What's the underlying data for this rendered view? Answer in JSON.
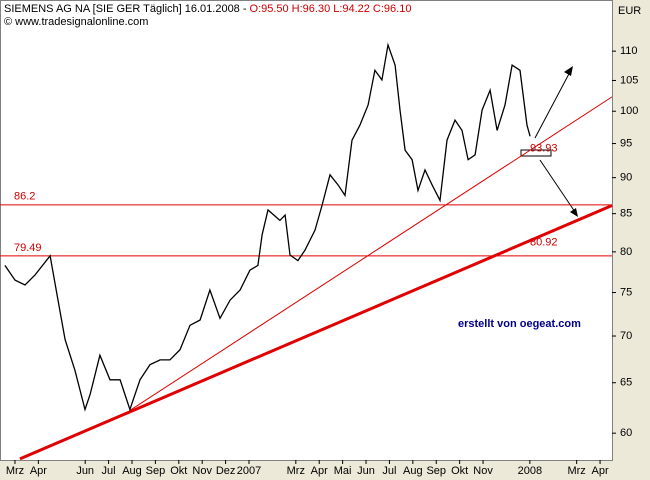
{
  "chart_data": {
    "type": "line",
    "title": "SIEMENS AG NA [SIE GER  Täglich] 16.01.2008 -",
    "ohlc_labels": [
      "O:95.50",
      "H:96.30",
      "L:94.22",
      "C:96.10"
    ],
    "subtitle": "© www.tradesignalonline.com",
    "y_axis_label": "EUR",
    "annotation": "erstellt von oegeat.com",
    "log_scale": true,
    "xlim": [
      -0.64,
      25.51
    ],
    "ylim": [
      57.5,
      119.3
    ],
    "yticks": [
      60,
      65,
      70,
      75,
      80,
      85,
      90,
      95,
      100,
      105,
      110
    ],
    "xticks": [
      {
        "value": 0,
        "label": "Mrz"
      },
      {
        "value": 1,
        "label": "Apr"
      },
      {
        "value": 3,
        "label": "Jun"
      },
      {
        "value": 4,
        "label": "Jul"
      },
      {
        "value": 5,
        "label": "Aug"
      },
      {
        "value": 6,
        "label": "Sep"
      },
      {
        "value": 7,
        "label": "Okt"
      },
      {
        "value": 8,
        "label": "Nov"
      },
      {
        "value": 9,
        "label": "Dez"
      },
      {
        "value": 10,
        "label": "2007"
      },
      {
        "value": 12,
        "label": "Mrz"
      },
      {
        "value": 13,
        "label": "Apr"
      },
      {
        "value": 14,
        "label": "Mai"
      },
      {
        "value": 15,
        "label": "Jun"
      },
      {
        "value": 16,
        "label": "Jul"
      },
      {
        "value": 17,
        "label": "Aug"
      },
      {
        "value": 18,
        "label": "Sep"
      },
      {
        "value": 19,
        "label": "Okt"
      },
      {
        "value": 20,
        "label": "Nov"
      },
      {
        "value": 22,
        "label": "2008"
      },
      {
        "value": 24,
        "label": "Mrz"
      },
      {
        "value": 25,
        "label": "Apr"
      }
    ],
    "series": [
      {
        "color": "#000000",
        "x": [
          -0.43,
          0,
          0.43,
          0.85,
          1.5,
          1.84,
          2.14,
          2.56,
          2.99,
          3.21,
          3.63,
          4.06,
          4.49,
          4.91,
          5.34,
          5.77,
          6.2,
          6.62,
          7.05,
          7.48,
          7.91,
          8.33,
          8.76,
          9.19,
          9.62,
          10.04,
          10.38,
          10.56,
          10.81,
          11.32,
          11.54,
          11.75,
          12.09,
          12.39,
          12.82,
          13.12,
          13.46,
          13.8,
          14.1,
          14.4,
          14.74,
          15.09,
          15.38,
          15.68,
          15.94,
          16.24,
          16.45,
          16.67,
          16.97,
          17.22,
          17.52,
          17.82,
          18.16,
          18.46,
          18.8,
          19.1,
          19.36,
          19.66,
          19.96,
          20.3,
          20.6,
          20.94,
          21.24,
          21.58,
          21.88,
          22.01
        ],
        "values": [
          78.3,
          76.5,
          75.9,
          77.1,
          79.5,
          74.1,
          69.6,
          66.3,
          62.3,
          63.8,
          67.9,
          65.3,
          65.3,
          62.3,
          65.3,
          66.9,
          67.4,
          67.4,
          68.5,
          71.2,
          71.8,
          75.3,
          72.0,
          74.1,
          75.3,
          77.7,
          78.3,
          82.2,
          85.5,
          84.1,
          84.8,
          79.6,
          78.9,
          80.2,
          82.8,
          86.1,
          90.4,
          89.0,
          87.5,
          95.5,
          97.8,
          101.0,
          106.7,
          105.1,
          111.1,
          107.6,
          100.2,
          94.0,
          92.6,
          88.2,
          91.1,
          89.0,
          86.8,
          95.5,
          98.6,
          97.0,
          92.6,
          93.3,
          100.2,
          103.4,
          97.0,
          101.0,
          107.6,
          106.7,
          97.8,
          96.1
        ]
      }
    ],
    "hlines": [
      {
        "value": 86.2,
        "label": "86.2"
      },
      {
        "value": 79.49,
        "label": "79.49"
      }
    ],
    "trendlines": [
      {
        "x": [
          4.91,
          25.51
        ],
        "y": [
          62.2,
          102.3
        ],
        "width": 1
      },
      {
        "x": [
          0.21,
          25.51
        ],
        "y": [
          57.6,
          86.1
        ],
        "width": 3
      }
    ],
    "level_labels": [
      {
        "value": 80.92,
        "label": "80.92"
      },
      {
        "value": 93.93,
        "label": "93.93"
      }
    ]
  }
}
